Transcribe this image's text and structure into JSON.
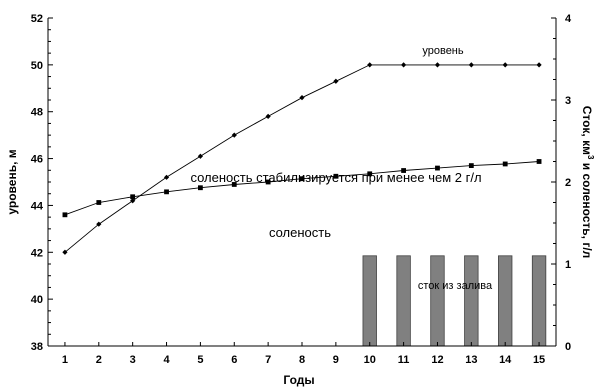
{
  "chart_data": {
    "type": "line",
    "title": "",
    "x": [
      1,
      2,
      3,
      4,
      5,
      6,
      7,
      8,
      9,
      10,
      11,
      12,
      13,
      14,
      15
    ],
    "xlabel": "Годы",
    "x_ticks": [
      "1",
      "2",
      "3",
      "4",
      "5",
      "6",
      "7",
      "8",
      "9",
      "10",
      "11",
      "12",
      "13",
      "14",
      "15"
    ],
    "xlim": [
      0.5,
      15.5
    ],
    "ylabel": "уровень, м",
    "ylim": [
      38,
      52
    ],
    "y_ticks": [
      "38",
      "40",
      "42",
      "44",
      "46",
      "48",
      "50",
      "52"
    ],
    "y2label": "Сток, км³ и соленость, г/л",
    "y2label_main": "Сток, км",
    "y2label_sup": "3",
    "y2label_rest": " и соленость, г/л",
    "y2lim": [
      0,
      4
    ],
    "y2_ticks": [
      "0",
      "1",
      "2",
      "3",
      "4"
    ],
    "grid": false,
    "series": [
      {
        "name": "уровень",
        "axis": "left",
        "marker": "diamond",
        "values": [
          42.0,
          43.2,
          44.2,
          45.2,
          46.1,
          47.0,
          47.8,
          48.6,
          49.3,
          50.0,
          50.0,
          50.0,
          50.0,
          50.0,
          50.0
        ]
      },
      {
        "name": "соленость",
        "axis": "right",
        "marker": "square",
        "values": [
          1.6,
          1.75,
          1.82,
          1.88,
          1.93,
          1.97,
          2.0,
          2.04,
          2.07,
          2.1,
          2.14,
          2.17,
          2.2,
          2.22,
          2.25
        ]
      },
      {
        "name": "сток из залива",
        "axis": "right",
        "type": "bar",
        "x": [
          10,
          11,
          12,
          13,
          14,
          15
        ],
        "values": [
          1.1,
          1.1,
          1.1,
          1.1,
          1.1,
          1.1
        ]
      }
    ],
    "annotations": [
      {
        "text": "уровень",
        "series": "уровень"
      },
      {
        "text": "соленость стабилизируется при менее чем 2 г/л"
      },
      {
        "text": "соленость",
        "series": "соленость"
      },
      {
        "text": "сток из залива",
        "series": "сток из залива"
      }
    ]
  }
}
